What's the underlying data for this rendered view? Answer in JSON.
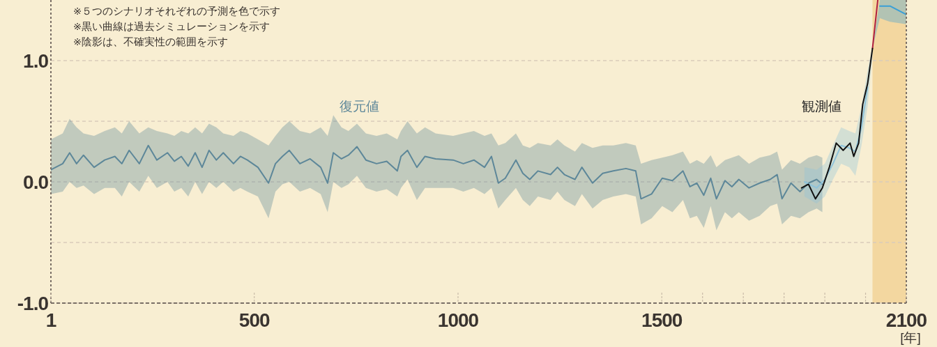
{
  "chart_data": {
    "type": "line",
    "xlim": [
      1,
      2100
    ],
    "ylim": [
      -1.0,
      1.5
    ],
    "xticks": [
      1,
      500,
      1000,
      1500,
      {
        "value": 1600,
        "label": null
      },
      {
        "value": 1700,
        "label": null
      },
      {
        "value": 1800,
        "label": null
      },
      {
        "value": 1900,
        "label": null
      },
      {
        "value": 2000,
        "label": null
      },
      2100
    ],
    "yticks": [
      {
        "value": -1.0,
        "label": "-1.0"
      },
      {
        "value": -0.5,
        "label": null
      },
      {
        "value": 0.0,
        "label": "0.0"
      },
      {
        "value": 0.5,
        "label": null
      },
      {
        "value": 1.0,
        "label": "1.0"
      }
    ],
    "xlabel": "[年]",
    "grid": "y",
    "bands": [
      {
        "axis": "x",
        "from": 2017,
        "to": 2100,
        "color": "#f3d7a0"
      }
    ],
    "annotations": [
      "※５つのシナリオそれぞれの予測を色で示す",
      "※黒い曲線は過去シミュレーションを示す",
      "※陰影は、不確実性の範囲を示す",
      "復元値",
      "観測値"
    ],
    "series": [
      {
        "color": "#5d8799",
        "x": [
          1,
          30,
          47,
          64,
          81,
          107,
          133,
          158,
          175,
          193,
          218,
          240,
          261,
          287,
          304,
          321,
          338,
          355,
          372,
          389,
          407,
          424,
          449,
          466,
          483,
          509,
          535,
          552,
          569,
          586,
          612,
          637,
          663,
          680,
          694,
          714,
          731,
          752,
          774,
          800,
          825,
          851,
          860,
          876,
          899,
          919,
          945,
          988,
          1013,
          1039,
          1065,
          1082,
          1099,
          1116,
          1142,
          1159,
          1176,
          1196,
          1227,
          1244,
          1261,
          1287,
          1304,
          1330,
          1355,
          1381,
          1412,
          1436,
          1449,
          1475,
          1501,
          1526,
          1552,
          1569,
          1586,
          1603,
          1620,
          1634,
          1655,
          1672,
          1689,
          1714,
          1740,
          1766,
          1783,
          1795,
          1817,
          1839,
          1860,
          1880,
          1894
        ],
        "values": [
          0.1,
          0.15,
          0.24,
          0.15,
          0.22,
          0.12,
          0.18,
          0.21,
          0.15,
          0.26,
          0.15,
          0.3,
          0.18,
          0.24,
          0.17,
          0.21,
          0.13,
          0.24,
          0.12,
          0.26,
          0.18,
          0.24,
          0.15,
          0.21,
          0.18,
          0.12,
          -0.01,
          0.15,
          0.21,
          0.26,
          0.15,
          0.19,
          0.12,
          -0.01,
          0.24,
          0.19,
          0.22,
          0.29,
          0.18,
          0.15,
          0.17,
          0.09,
          0.21,
          0.26,
          0.12,
          0.21,
          0.19,
          0.18,
          0.15,
          0.18,
          0.12,
          0.21,
          -0.01,
          0.03,
          0.18,
          0.07,
          0.02,
          0.09,
          0.06,
          0.12,
          0.06,
          0.02,
          0.12,
          -0.01,
          0.07,
          0.09,
          0.11,
          0.09,
          -0.14,
          -0.1,
          0.03,
          0.01,
          0.09,
          -0.04,
          -0.01,
          -0.11,
          0.03,
          -0.14,
          0.01,
          -0.04,
          0.02,
          -0.05,
          -0.01,
          0.02,
          0.06,
          -0.14,
          -0.01,
          -0.08,
          -0.01,
          0.02,
          -0.02
        ],
        "upper": [
          0.35,
          0.4,
          0.52,
          0.45,
          0.4,
          0.38,
          0.42,
          0.45,
          0.4,
          0.5,
          0.4,
          0.45,
          0.42,
          0.4,
          0.38,
          0.42,
          0.4,
          0.45,
          0.4,
          0.48,
          0.45,
          0.4,
          0.38,
          0.42,
          0.4,
          0.35,
          0.3,
          0.38,
          0.45,
          0.5,
          0.42,
          0.4,
          0.45,
          0.38,
          0.55,
          0.45,
          0.42,
          0.48,
          0.4,
          0.38,
          0.4,
          0.35,
          0.42,
          0.5,
          0.4,
          0.45,
          0.4,
          0.38,
          0.4,
          0.42,
          0.38,
          0.4,
          0.3,
          0.32,
          0.4,
          0.3,
          0.28,
          0.32,
          0.3,
          0.35,
          0.3,
          0.25,
          0.32,
          0.28,
          0.3,
          0.3,
          0.32,
          0.3,
          0.15,
          0.18,
          0.2,
          0.22,
          0.25,
          0.15,
          0.18,
          0.15,
          0.22,
          0.12,
          0.18,
          0.2,
          0.22,
          0.15,
          0.2,
          0.22,
          0.25,
          0.1,
          0.18,
          0.15,
          0.2,
          0.22,
          0.2
        ],
        "lower": [
          -0.1,
          -0.08,
          0.0,
          -0.05,
          -0.03,
          -0.1,
          -0.05,
          -0.05,
          -0.12,
          0.0,
          -0.08,
          0.05,
          -0.05,
          0.0,
          -0.08,
          -0.05,
          -0.12,
          0.0,
          -0.1,
          0.0,
          -0.05,
          0.0,
          -0.08,
          -0.05,
          -0.08,
          -0.12,
          -0.3,
          -0.08,
          -0.02,
          0.0,
          -0.08,
          -0.05,
          -0.1,
          -0.25,
          0.0,
          -0.05,
          -0.02,
          0.05,
          -0.05,
          -0.08,
          -0.06,
          -0.12,
          -0.05,
          0.02,
          -0.15,
          -0.05,
          -0.05,
          -0.05,
          -0.08,
          -0.05,
          -0.1,
          -0.05,
          -0.22,
          -0.15,
          -0.05,
          -0.15,
          -0.2,
          -0.12,
          -0.15,
          -0.08,
          -0.15,
          -0.2,
          -0.1,
          -0.22,
          -0.15,
          -0.12,
          -0.1,
          -0.12,
          -0.35,
          -0.3,
          -0.2,
          -0.25,
          -0.15,
          -0.3,
          -0.28,
          -0.38,
          -0.2,
          -0.4,
          -0.25,
          -0.3,
          -0.25,
          -0.32,
          -0.28,
          -0.2,
          -0.18,
          -0.35,
          -0.28,
          -0.3,
          -0.25,
          -0.22,
          -0.25
        ]
      },
      {
        "color": "#8fc3da",
        "x": [
          1850,
          1880,
          1900,
          1920,
          1940,
          1960,
          1975,
          1990,
          2005,
          2017
        ],
        "values": [
          0.0,
          -0.05,
          0.02,
          0.15,
          0.3,
          0.28,
          0.25,
          0.45,
          0.78,
          null
        ],
        "lower": [
          -0.12,
          -0.18,
          -0.12,
          0.02,
          0.15,
          0.12,
          0.05,
          0.3,
          0.62,
          1.05
        ],
        "upper": [
          0.12,
          0.1,
          0.15,
          0.3,
          0.45,
          0.42,
          0.4,
          0.62,
          0.92,
          1.12
        ]
      },
      {
        "color": "#3a9fd6",
        "x": [
          2017,
          2035,
          2060,
          2100
        ],
        "values": [
          null,
          1.45,
          1.45,
          1.38
        ],
        "lower": [
          1.1,
          1.35,
          1.32,
          1.3
        ],
        "upper": [
          1.1,
          1.5,
          1.5,
          1.5
        ]
      },
      {
        "color": "#b01f3f",
        "x": [
          2017,
          2030
        ],
        "values": [
          1.1,
          1.5
        ]
      },
      {
        "color": "#111111",
        "x": [
          1843,
          1860,
          1877,
          1894,
          1911,
          1928,
          1945,
          1962,
          1971,
          1983,
          1993,
          2005,
          2017
        ],
        "values": [
          -0.05,
          -0.02,
          -0.14,
          -0.05,
          0.12,
          0.32,
          0.26,
          0.32,
          0.21,
          0.32,
          0.64,
          0.81,
          1.1
        ]
      }
    ]
  }
}
